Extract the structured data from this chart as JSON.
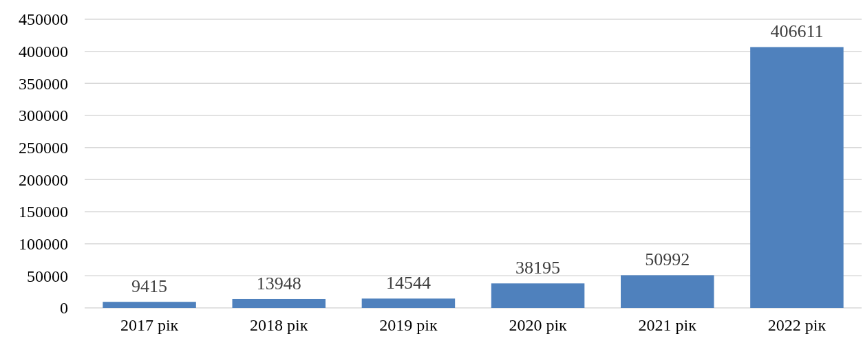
{
  "chart_data": {
    "type": "bar",
    "categories": [
      "2017 рік",
      "2018 рік",
      "2019 рік",
      "2020 рік",
      "2021 рік",
      "2022 рік"
    ],
    "values": [
      9415,
      13948,
      14544,
      38195,
      50992,
      406611
    ],
    "color": "#4f81bd",
    "ylim": [
      0,
      450000
    ],
    "yticks": [
      0,
      50000,
      100000,
      150000,
      200000,
      250000,
      300000,
      350000,
      400000,
      450000
    ],
    "grid": "y",
    "data_labels": true
  }
}
